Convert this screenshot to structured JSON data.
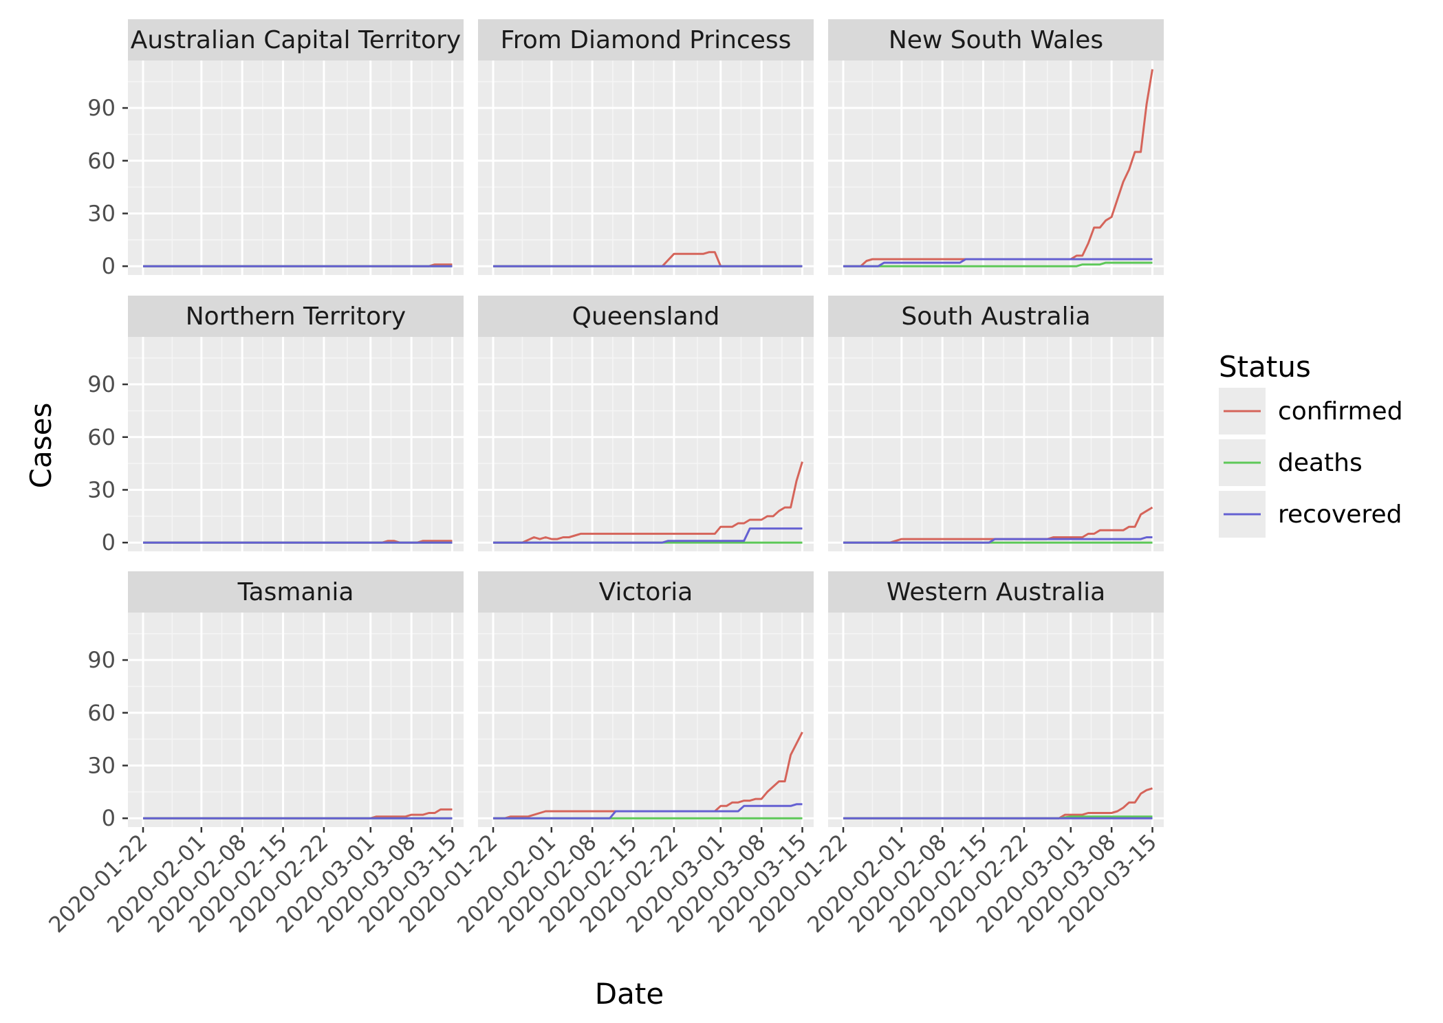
{
  "chart_data": {
    "type": "line",
    "facet_layout": "3x3 grid",
    "xlabel": "Date",
    "ylabel": "Cases",
    "x_ticks": [
      "2020-01-22",
      "2020-02-01",
      "2020-02-08",
      "2020-02-15",
      "2020-02-22",
      "2020-03-01",
      "2020-03-08",
      "2020-03-15"
    ],
    "x_range": [
      "2020-01-22",
      "2020-03-16"
    ],
    "y_ticks": [
      0,
      30,
      60,
      90
    ],
    "ylim": [
      -5,
      117
    ],
    "grid": true,
    "legend": {
      "title": "Status",
      "position": "right",
      "entries": [
        {
          "name": "confirmed",
          "color": "#d5645a"
        },
        {
          "name": "deaths",
          "color": "#5dc858"
        },
        {
          "name": "recovered",
          "color": "#6460d2"
        }
      ]
    },
    "panels": [
      {
        "title": "Australian Capital Territory",
        "series": [
          {
            "name": "confirmed",
            "points": [
              [
                "2020-01-22",
                0
              ],
              [
                "2020-03-11",
                0
              ],
              [
                "2020-03-12",
                1
              ],
              [
                "2020-03-15",
                1
              ]
            ]
          },
          {
            "name": "deaths",
            "points": [
              [
                "2020-01-22",
                0
              ],
              [
                "2020-03-15",
                0
              ]
            ]
          },
          {
            "name": "recovered",
            "points": [
              [
                "2020-01-22",
                0
              ],
              [
                "2020-03-15",
                0
              ]
            ]
          }
        ]
      },
      {
        "title": "From Diamond Princess",
        "series": [
          {
            "name": "confirmed",
            "points": [
              [
                "2020-01-22",
                0
              ],
              [
                "2020-02-20",
                0
              ],
              [
                "2020-02-22",
                7
              ],
              [
                "2020-02-25",
                7
              ],
              [
                "2020-02-27",
                7
              ],
              [
                "2020-02-28",
                8
              ],
              [
                "2020-02-29",
                8
              ],
              [
                "2020-03-01",
                0
              ],
              [
                "2020-03-15",
                0
              ]
            ]
          },
          {
            "name": "deaths",
            "points": [
              [
                "2020-01-22",
                0
              ],
              [
                "2020-03-15",
                0
              ]
            ]
          },
          {
            "name": "recovered",
            "points": [
              [
                "2020-01-22",
                0
              ],
              [
                "2020-03-15",
                0
              ]
            ]
          }
        ]
      },
      {
        "title": "New South Wales",
        "series": [
          {
            "name": "confirmed",
            "points": [
              [
                "2020-01-22",
                0
              ],
              [
                "2020-01-25",
                0
              ],
              [
                "2020-01-26",
                3
              ],
              [
                "2020-01-27",
                4
              ],
              [
                "2020-02-28",
                4
              ],
              [
                "2020-03-01",
                4
              ],
              [
                "2020-03-02",
                6
              ],
              [
                "2020-03-03",
                6
              ],
              [
                "2020-03-04",
                13
              ],
              [
                "2020-03-05",
                22
              ],
              [
                "2020-03-06",
                22
              ],
              [
                "2020-03-07",
                26
              ],
              [
                "2020-03-08",
                28
              ],
              [
                "2020-03-09",
                38
              ],
              [
                "2020-03-10",
                48
              ],
              [
                "2020-03-11",
                55
              ],
              [
                "2020-03-12",
                65
              ],
              [
                "2020-03-13",
                65
              ],
              [
                "2020-03-14",
                92
              ],
              [
                "2020-03-15",
                112
              ]
            ]
          },
          {
            "name": "deaths",
            "points": [
              [
                "2020-01-22",
                0
              ],
              [
                "2020-03-02",
                0
              ],
              [
                "2020-03-03",
                1
              ],
              [
                "2020-03-06",
                1
              ],
              [
                "2020-03-07",
                2
              ],
              [
                "2020-03-15",
                2
              ]
            ]
          },
          {
            "name": "recovered",
            "points": [
              [
                "2020-01-22",
                0
              ],
              [
                "2020-01-28",
                0
              ],
              [
                "2020-01-29",
                2
              ],
              [
                "2020-02-11",
                2
              ],
              [
                "2020-02-12",
                4
              ],
              [
                "2020-03-15",
                4
              ]
            ]
          }
        ]
      },
      {
        "title": "Northern Territory",
        "series": [
          {
            "name": "confirmed",
            "points": [
              [
                "2020-01-22",
                0
              ],
              [
                "2020-03-03",
                0
              ],
              [
                "2020-03-04",
                1
              ],
              [
                "2020-03-05",
                1
              ],
              [
                "2020-03-06",
                0
              ],
              [
                "2020-03-09",
                0
              ],
              [
                "2020-03-10",
                1
              ],
              [
                "2020-03-15",
                1
              ]
            ]
          },
          {
            "name": "deaths",
            "points": [
              [
                "2020-01-22",
                0
              ],
              [
                "2020-03-15",
                0
              ]
            ]
          },
          {
            "name": "recovered",
            "points": [
              [
                "2020-01-22",
                0
              ],
              [
                "2020-03-15",
                0
              ]
            ]
          }
        ]
      },
      {
        "title": "Queensland",
        "series": [
          {
            "name": "confirmed",
            "points": [
              [
                "2020-01-22",
                0
              ],
              [
                "2020-01-27",
                0
              ],
              [
                "2020-01-29",
                3
              ],
              [
                "2020-01-30",
                2
              ],
              [
                "2020-01-31",
                3
              ],
              [
                "2020-02-01",
                2
              ],
              [
                "2020-02-02",
                2
              ],
              [
                "2020-02-03",
                3
              ],
              [
                "2020-02-04",
                3
              ],
              [
                "2020-02-05",
                4
              ],
              [
                "2020-02-06",
                5
              ],
              [
                "2020-02-29",
                5
              ],
              [
                "2020-03-01",
                9
              ],
              [
                "2020-03-02",
                9
              ],
              [
                "2020-03-03",
                9
              ],
              [
                "2020-03-04",
                11
              ],
              [
                "2020-03-05",
                11
              ],
              [
                "2020-03-06",
                13
              ],
              [
                "2020-03-08",
                13
              ],
              [
                "2020-03-09",
                15
              ],
              [
                "2020-03-10",
                15
              ],
              [
                "2020-03-11",
                18
              ],
              [
                "2020-03-12",
                20
              ],
              [
                "2020-03-13",
                20
              ],
              [
                "2020-03-14",
                35
              ],
              [
                "2020-03-15",
                46
              ]
            ]
          },
          {
            "name": "deaths",
            "points": [
              [
                "2020-01-22",
                0
              ],
              [
                "2020-03-15",
                0
              ]
            ]
          },
          {
            "name": "recovered",
            "points": [
              [
                "2020-01-22",
                0
              ],
              [
                "2020-02-20",
                0
              ],
              [
                "2020-02-21",
                1
              ],
              [
                "2020-03-05",
                1
              ],
              [
                "2020-03-06",
                8
              ],
              [
                "2020-03-15",
                8
              ]
            ]
          }
        ]
      },
      {
        "title": "South Australia",
        "series": [
          {
            "name": "confirmed",
            "points": [
              [
                "2020-01-22",
                0
              ],
              [
                "2020-01-30",
                0
              ],
              [
                "2020-02-01",
                2
              ],
              [
                "2020-02-23",
                2
              ],
              [
                "2020-02-26",
                2
              ],
              [
                "2020-02-27",
                3
              ],
              [
                "2020-03-03",
                3
              ],
              [
                "2020-03-04",
                5
              ],
              [
                "2020-03-05",
                5
              ],
              [
                "2020-03-06",
                7
              ],
              [
                "2020-03-10",
                7
              ],
              [
                "2020-03-11",
                9
              ],
              [
                "2020-03-12",
                9
              ],
              [
                "2020-03-13",
                16
              ],
              [
                "2020-03-14",
                18
              ],
              [
                "2020-03-15",
                20
              ]
            ]
          },
          {
            "name": "deaths",
            "points": [
              [
                "2020-01-22",
                0
              ],
              [
                "2020-03-15",
                0
              ]
            ]
          },
          {
            "name": "recovered",
            "points": [
              [
                "2020-01-22",
                0
              ],
              [
                "2020-02-16",
                0
              ],
              [
                "2020-02-17",
                2
              ],
              [
                "2020-03-13",
                2
              ],
              [
                "2020-03-14",
                3
              ],
              [
                "2020-03-15",
                3
              ]
            ]
          }
        ]
      },
      {
        "title": "Tasmania",
        "series": [
          {
            "name": "confirmed",
            "points": [
              [
                "2020-01-22",
                0
              ],
              [
                "2020-03-01",
                0
              ],
              [
                "2020-03-02",
                1
              ],
              [
                "2020-03-07",
                1
              ],
              [
                "2020-03-08",
                2
              ],
              [
                "2020-03-10",
                2
              ],
              [
                "2020-03-11",
                3
              ],
              [
                "2020-03-12",
                3
              ],
              [
                "2020-03-13",
                5
              ],
              [
                "2020-03-15",
                5
              ]
            ]
          },
          {
            "name": "deaths",
            "points": [
              [
                "2020-01-22",
                0
              ],
              [
                "2020-03-15",
                0
              ]
            ]
          },
          {
            "name": "recovered",
            "points": [
              [
                "2020-01-22",
                0
              ],
              [
                "2020-03-15",
                0
              ]
            ]
          }
        ]
      },
      {
        "title": "Victoria",
        "series": [
          {
            "name": "confirmed",
            "points": [
              [
                "2020-01-22",
                0
              ],
              [
                "2020-01-24",
                0
              ],
              [
                "2020-01-25",
                1
              ],
              [
                "2020-01-28",
                1
              ],
              [
                "2020-01-31",
                4
              ],
              [
                "2020-02-29",
                4
              ],
              [
                "2020-03-01",
                7
              ],
              [
                "2020-03-02",
                7
              ],
              [
                "2020-03-03",
                9
              ],
              [
                "2020-03-04",
                9
              ],
              [
                "2020-03-05",
                10
              ],
              [
                "2020-03-06",
                10
              ],
              [
                "2020-03-07",
                11
              ],
              [
                "2020-03-08",
                11
              ],
              [
                "2020-03-09",
                15
              ],
              [
                "2020-03-11",
                21
              ],
              [
                "2020-03-12",
                21
              ],
              [
                "2020-03-13",
                36
              ],
              [
                "2020-03-15",
                49
              ]
            ]
          },
          {
            "name": "deaths",
            "points": [
              [
                "2020-01-22",
                0
              ],
              [
                "2020-03-15",
                0
              ]
            ]
          },
          {
            "name": "recovered",
            "points": [
              [
                "2020-01-22",
                0
              ],
              [
                "2020-02-11",
                0
              ],
              [
                "2020-02-12",
                4
              ],
              [
                "2020-03-04",
                4
              ],
              [
                "2020-03-05",
                7
              ],
              [
                "2020-03-13",
                7
              ],
              [
                "2020-03-14",
                8
              ],
              [
                "2020-03-15",
                8
              ]
            ]
          }
        ]
      },
      {
        "title": "Western Australia",
        "series": [
          {
            "name": "confirmed",
            "points": [
              [
                "2020-01-22",
                0
              ],
              [
                "2020-02-28",
                0
              ],
              [
                "2020-02-29",
                2
              ],
              [
                "2020-03-03",
                2
              ],
              [
                "2020-03-04",
                3
              ],
              [
                "2020-03-08",
                3
              ],
              [
                "2020-03-09",
                4
              ],
              [
                "2020-03-10",
                6
              ],
              [
                "2020-03-11",
                9
              ],
              [
                "2020-03-12",
                9
              ],
              [
                "2020-03-13",
                14
              ],
              [
                "2020-03-14",
                16
              ],
              [
                "2020-03-15",
                17
              ]
            ]
          },
          {
            "name": "deaths",
            "points": [
              [
                "2020-01-22",
                0
              ],
              [
                "2020-02-28",
                0
              ],
              [
                "2020-03-01",
                1
              ],
              [
                "2020-03-15",
                1
              ]
            ]
          },
          {
            "name": "recovered",
            "points": [
              [
                "2020-01-22",
                0
              ],
              [
                "2020-03-15",
                0
              ]
            ]
          }
        ]
      }
    ]
  }
}
